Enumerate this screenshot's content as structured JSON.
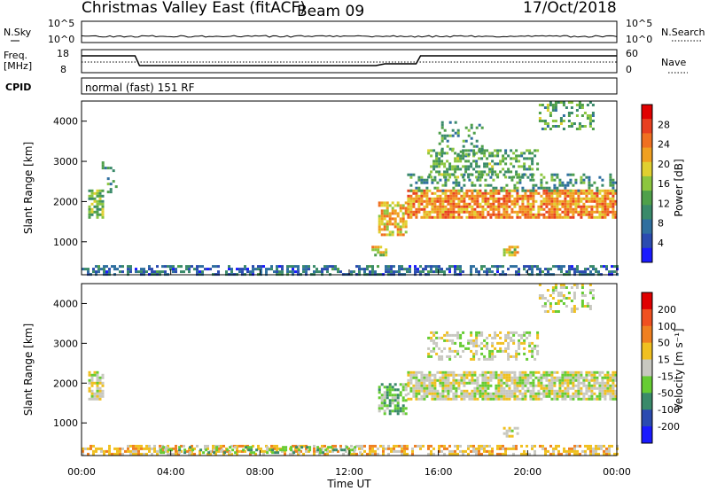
{
  "header": {
    "title": "Christmas Valley East (fitACF)",
    "beam": "Beam 09",
    "date": "17/Oct/2018"
  },
  "noise_panel": {
    "left_label": "N.Sky",
    "right_label": "N.Search",
    "left_ticks": [
      "10^5",
      "10^0"
    ],
    "right_ticks": [
      "10^5",
      "10^0"
    ]
  },
  "freq_panel": {
    "left_label_1": "Freq.",
    "left_label_2": "[MHz]",
    "right_label": "Nave",
    "left_ticks": [
      "18",
      "8"
    ],
    "right_ticks": [
      "60",
      "0"
    ]
  },
  "cpid_panel": {
    "label": "CPID",
    "text": "normal (fast) 151 RF"
  },
  "colors": {
    "power": [
      "#1a1aff",
      "#2b4bb0",
      "#2f6f9f",
      "#3a8a6a",
      "#4fa04a",
      "#8cc63f",
      "#e0d030",
      "#f0a020",
      "#f07020",
      "#e84020",
      "#e00000"
    ],
    "velocity": [
      "#1a1aff",
      "#2b4bb0",
      "#3a8a6a",
      "#66cc33",
      "#c8c8c0",
      "#f0c020",
      "#f08020",
      "#f05020",
      "#e00000"
    ],
    "ground": "#c8c8c0"
  },
  "chart_data": [
    {
      "type": "heatmap",
      "name": "power",
      "ylabel": "Slant Range [km]",
      "ylim": [
        180,
        4500
      ],
      "xlim": [
        0,
        24
      ],
      "yticks": [
        "1000",
        "2000",
        "3000",
        "4000"
      ],
      "colorbar_label": "Power [dB]",
      "colorbar_ticks": [
        "28",
        "24",
        "20",
        "16",
        "12",
        "8",
        "4"
      ],
      "colorbar_range": [
        0,
        30
      ],
      "regions": [
        {
          "t0": 0.0,
          "t1": 24.0,
          "r0": 200,
          "r1": 420,
          "level": 6,
          "density": 0.55
        },
        {
          "t0": 0.3,
          "t1": 1.0,
          "r0": 1600,
          "r1": 2300,
          "level": 14,
          "density": 0.75
        },
        {
          "t0": 0.9,
          "t1": 1.5,
          "r0": 2200,
          "r1": 3000,
          "level": 10,
          "density": 0.3
        },
        {
          "t0": 13.3,
          "t1": 14.6,
          "r0": 1200,
          "r1": 2000,
          "level": 20,
          "density": 0.7
        },
        {
          "t0": 13.0,
          "t1": 13.6,
          "r0": 650,
          "r1": 900,
          "level": 18,
          "density": 0.7
        },
        {
          "t0": 14.6,
          "t1": 24.0,
          "r0": 1600,
          "r1": 2300,
          "level": 22,
          "density": 0.8
        },
        {
          "t0": 14.6,
          "t1": 24.0,
          "r0": 2300,
          "r1": 2700,
          "level": 10,
          "density": 0.3
        },
        {
          "t0": 15.5,
          "t1": 20.5,
          "r0": 2600,
          "r1": 3300,
          "level": 12,
          "density": 0.45
        },
        {
          "t0": 16.0,
          "t1": 18.0,
          "r0": 3200,
          "r1": 4000,
          "level": 10,
          "density": 0.25
        },
        {
          "t0": 20.5,
          "t1": 23.0,
          "r0": 3800,
          "r1": 4500,
          "level": 12,
          "density": 0.35
        },
        {
          "t0": 18.9,
          "t1": 19.5,
          "r0": 650,
          "r1": 900,
          "level": 18,
          "density": 0.7
        }
      ]
    },
    {
      "type": "heatmap",
      "name": "velocity",
      "ylabel": "Slant Range [km]",
      "xlabel": "Time UT",
      "ylim": [
        180,
        4500
      ],
      "xlim": [
        0,
        24
      ],
      "yticks": [
        "1000",
        "2000",
        "3000",
        "4000"
      ],
      "xticks": [
        "00:00",
        "04:00",
        "08:00",
        "12:00",
        "16:00",
        "20:00",
        "00:00"
      ],
      "colorbar_label": "Velocity [m s⁻¹]",
      "colorbar_ticks": [
        "200",
        "100",
        "50",
        "15",
        "-15",
        "-50",
        "-100",
        "-200"
      ],
      "regions": [
        {
          "t0": 0.0,
          "t1": 24.0,
          "r0": 200,
          "r1": 450,
          "level": 5,
          "density": 0.55
        },
        {
          "t0": 3.5,
          "t1": 12.5,
          "r0": 220,
          "r1": 420,
          "level": 3,
          "density": 0.35
        },
        {
          "t0": 0.3,
          "t1": 1.0,
          "r0": 1600,
          "r1": 2300,
          "level": 4,
          "density": 0.7
        },
        {
          "t0": 13.3,
          "t1": 14.6,
          "r0": 1200,
          "r1": 2000,
          "level": 3,
          "density": 0.6
        },
        {
          "t0": 14.6,
          "t1": 24.0,
          "r0": 1600,
          "r1": 2300,
          "level": 4,
          "density": 0.8
        },
        {
          "t0": 15.5,
          "t1": 20.5,
          "r0": 2600,
          "r1": 3300,
          "level": 4,
          "density": 0.45
        },
        {
          "t0": 20.5,
          "t1": 23.0,
          "r0": 3800,
          "r1": 4500,
          "level": 4,
          "density": 0.35
        },
        {
          "t0": 18.9,
          "t1": 19.5,
          "r0": 650,
          "r1": 900,
          "level": 4,
          "density": 0.6
        }
      ]
    }
  ]
}
